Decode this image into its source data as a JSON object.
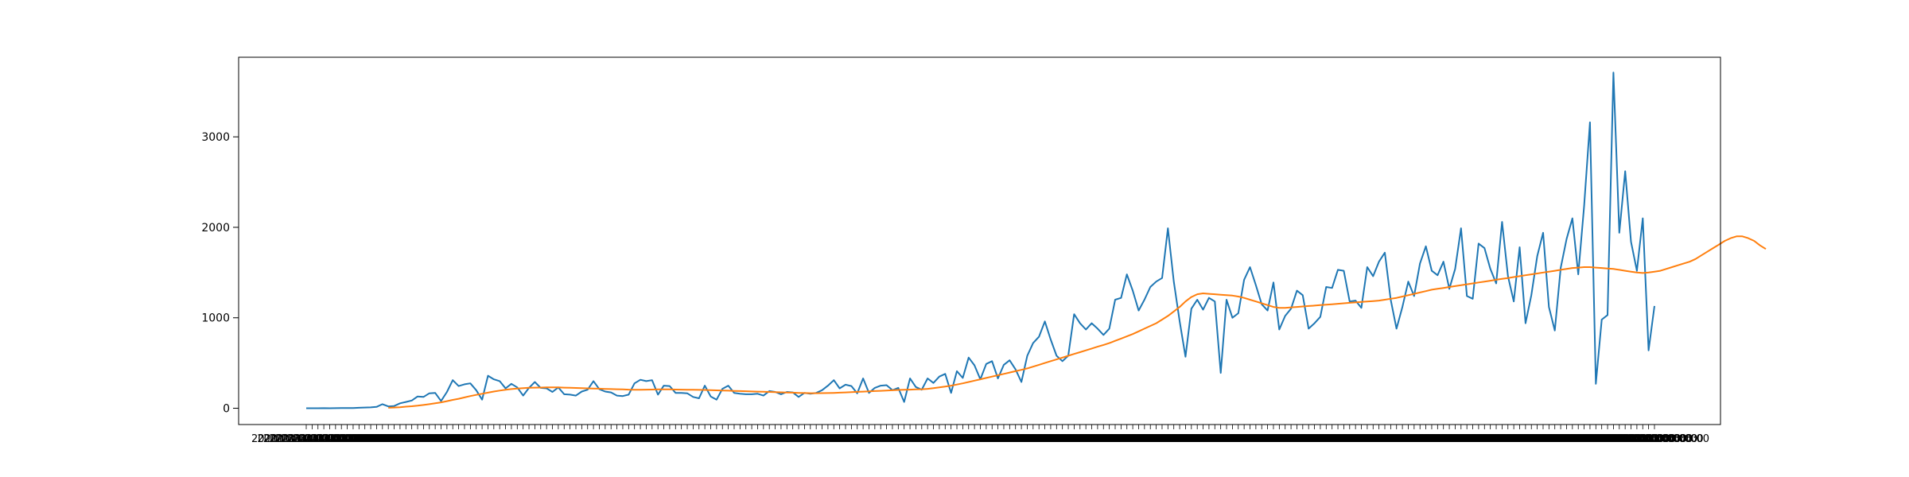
{
  "chart_data": {
    "type": "line",
    "title": "",
    "xlabel": "",
    "ylabel": "",
    "ylim": [
      -180,
      3880
    ],
    "grid": false,
    "legend": "none",
    "y_ticks": [
      0,
      1000,
      2000,
      3000
    ],
    "y_tick_labels": [
      "0",
      "1000",
      "2000",
      "3000"
    ],
    "x_tick_text": "2020-03-01 00:00:00",
    "series": [
      {
        "color": "#1f77b4",
        "values": [
          0,
          0,
          0,
          1,
          0,
          1,
          2,
          3,
          2,
          5,
          8,
          10,
          15,
          45,
          20,
          25,
          55,
          70,
          85,
          130,
          125,
          165,
          170,
          80,
          180,
          310,
          245,
          265,
          275,
          200,
          95,
          360,
          320,
          300,
          220,
          270,
          230,
          140,
          225,
          290,
          225,
          220,
          180,
          230,
          155,
          150,
          140,
          185,
          205,
          300,
          210,
          185,
          175,
          140,
          135,
          150,
          275,
          315,
          300,
          310,
          150,
          250,
          245,
          170,
          170,
          165,
          125,
          110,
          250,
          130,
          95,
          215,
          250,
          170,
          160,
          155,
          155,
          160,
          140,
          190,
          180,
          155,
          180,
          175,
          125,
          170,
          160,
          170,
          200,
          250,
          310,
          220,
          260,
          245,
          165,
          330,
          170,
          225,
          250,
          255,
          200,
          225,
          70,
          330,
          235,
          205,
          330,
          280,
          350,
          380,
          170,
          410,
          335,
          560,
          475,
          320,
          490,
          520,
          330,
          480,
          530,
          430,
          290,
          580,
          720,
          790,
          960,
          760,
          580,
          520,
          580,
          1040,
          940,
          870,
          940,
          880,
          810,
          880,
          1200,
          1220,
          1480,
          1300,
          1080,
          1200,
          1340,
          1400,
          1440,
          1990,
          1400,
          960,
          570,
          1100,
          1200,
          1090,
          1220,
          1180,
          390,
          1200,
          1000,
          1050,
          1420,
          1560,
          1360,
          1150,
          1080,
          1390,
          870,
          1020,
          1100,
          1300,
          1250,
          880,
          940,
          1010,
          1340,
          1330,
          1530,
          1520,
          1180,
          1190,
          1110,
          1560,
          1460,
          1620,
          1720,
          1200,
          880,
          1120,
          1400,
          1240,
          1600,
          1790,
          1520,
          1470,
          1620,
          1320,
          1540,
          1990,
          1240,
          1210,
          1820,
          1770,
          1540,
          1380,
          2060,
          1460,
          1180,
          1780,
          940,
          1250,
          1680,
          1940,
          1120,
          860,
          1550,
          1870,
          2100,
          1480,
          2240,
          3160,
          270,
          980,
          1030,
          3710,
          1940,
          2620,
          1840,
          1520,
          2100,
          640,
          1130
        ]
      },
      {
        "color": "#ff7f0e",
        "values": [
          null,
          null,
          null,
          null,
          null,
          null,
          null,
          null,
          null,
          null,
          null,
          null,
          null,
          null,
          5,
          8,
          12,
          18,
          22,
          28,
          36,
          45,
          55,
          65,
          78,
          92,
          105,
          120,
          135,
          148,
          160,
          172,
          185,
          195,
          205,
          212,
          218,
          222,
          226,
          228,
          229,
          230,
          231,
          230,
          228,
          226,
          224,
          222,
          220,
          218,
          216,
          214,
          212,
          210,
          208,
          206,
          205,
          205,
          206,
          207,
          208,
          208,
          208,
          207,
          206,
          205,
          204,
          203,
          202,
          200,
          198,
          196,
          194,
          192,
          190,
          188,
          186,
          184,
          182,
          180,
          178,
          176,
          174,
          172,
          170,
          168,
          166,
          166,
          167,
          168,
          170,
          172,
          175,
          178,
          181,
          184,
          187,
          190,
          193,
          196,
          199,
          202,
          204,
          206,
          208,
          210,
          215,
          222,
          230,
          240,
          250,
          262,
          275,
          290,
          305,
          320,
          335,
          350,
          365,
          380,
          395,
          410,
          425,
          440,
          460,
          480,
          500,
          520,
          540,
          560,
          580,
          600,
          620,
          640,
          660,
          680,
          700,
          720,
          745,
          770,
          795,
          820,
          850,
          880,
          910,
          940,
          980,
          1020,
          1070,
          1120,
          1180,
          1230,
          1260,
          1270,
          1265,
          1260,
          1255,
          1250,
          1245,
          1235,
          1220,
          1200,
          1180,
          1160,
          1140,
          1120,
          1110,
          1110,
          1115,
          1120,
          1125,
          1130,
          1135,
          1140,
          1145,
          1150,
          1155,
          1160,
          1165,
          1170,
          1175,
          1180,
          1185,
          1190,
          1200,
          1210,
          1220,
          1235,
          1250,
          1265,
          1280,
          1295,
          1310,
          1320,
          1330,
          1340,
          1350,
          1360,
          1370,
          1380,
          1390,
          1400,
          1410,
          1420,
          1430,
          1440,
          1450,
          1460,
          1470,
          1480,
          1490,
          1500,
          1510,
          1520,
          1530,
          1540,
          1550,
          1555,
          1560,
          1560,
          1555,
          1550,
          1545,
          1540,
          1530,
          1520,
          1510,
          1500,
          1495,
          1500,
          1510,
          1520,
          1540,
          1560,
          1580,
          1600,
          1620,
          1650,
          1690,
          1730,
          1770,
          1810,
          1850,
          1880,
          1900,
          1900,
          1880,
          1850,
          1800,
          1760
        ]
      }
    ]
  }
}
